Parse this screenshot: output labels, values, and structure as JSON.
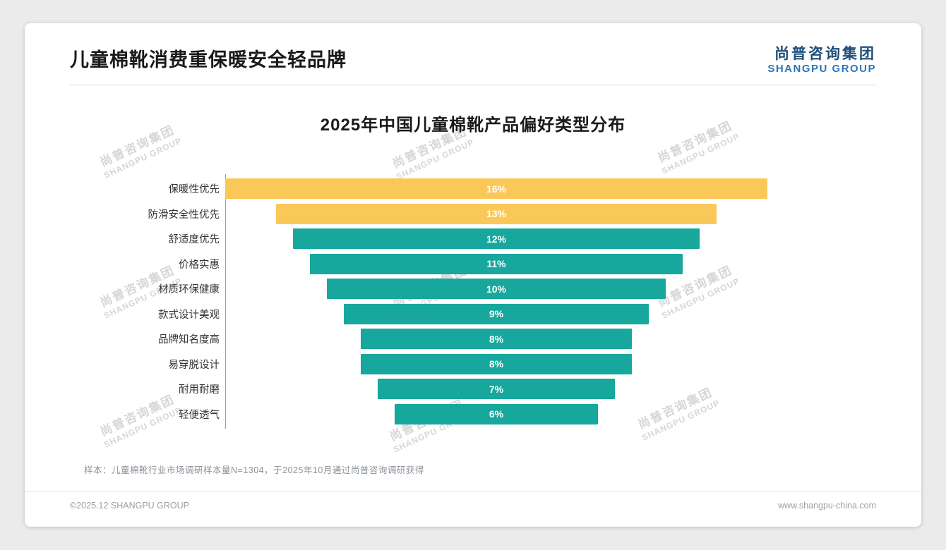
{
  "page": {
    "title": "儿童棉靴消费重保暖安全轻品牌",
    "logo": {
      "cn": "尚普咨询集团",
      "en": "SHANGPU GROUP"
    },
    "watermark": {
      "cn": "尚普咨询集团",
      "en": "SHANGPU GROUP"
    },
    "footnote": "样本：儿童棉靴行业市场调研样本量N=1304，于2025年10月通过尚普咨询调研获得",
    "footer_left": "©2025.12 SHANGPU GROUP",
    "footer_right": "www.shangpu-china.com"
  },
  "chart_data": {
    "type": "bar",
    "subtype": "centered-funnel-horizontal",
    "title": "2025年中国儿童棉靴产品偏好类型分布",
    "categories": [
      "保暖性优先",
      "防滑安全性优先",
      "舒适度优先",
      "价格实惠",
      "材质环保健康",
      "款式设计美观",
      "品牌知名度高",
      "易穿脱设计",
      "耐用耐磨",
      "轻便透气"
    ],
    "values": [
      16,
      13,
      12,
      11,
      10,
      9,
      8,
      8,
      7,
      6
    ],
    "unit": "%",
    "xlim": [
      0,
      16
    ],
    "grid": false,
    "legend": "none",
    "value_labels": "inside-center",
    "colors": {
      "highlight": "#fac858",
      "normal": "#17a79c",
      "value_text": "#ffffff"
    },
    "bar_colors": [
      "#fac858",
      "#fac858",
      "#17a79c",
      "#17a79c",
      "#17a79c",
      "#17a79c",
      "#17a79c",
      "#17a79c",
      "#17a79c",
      "#17a79c"
    ]
  }
}
